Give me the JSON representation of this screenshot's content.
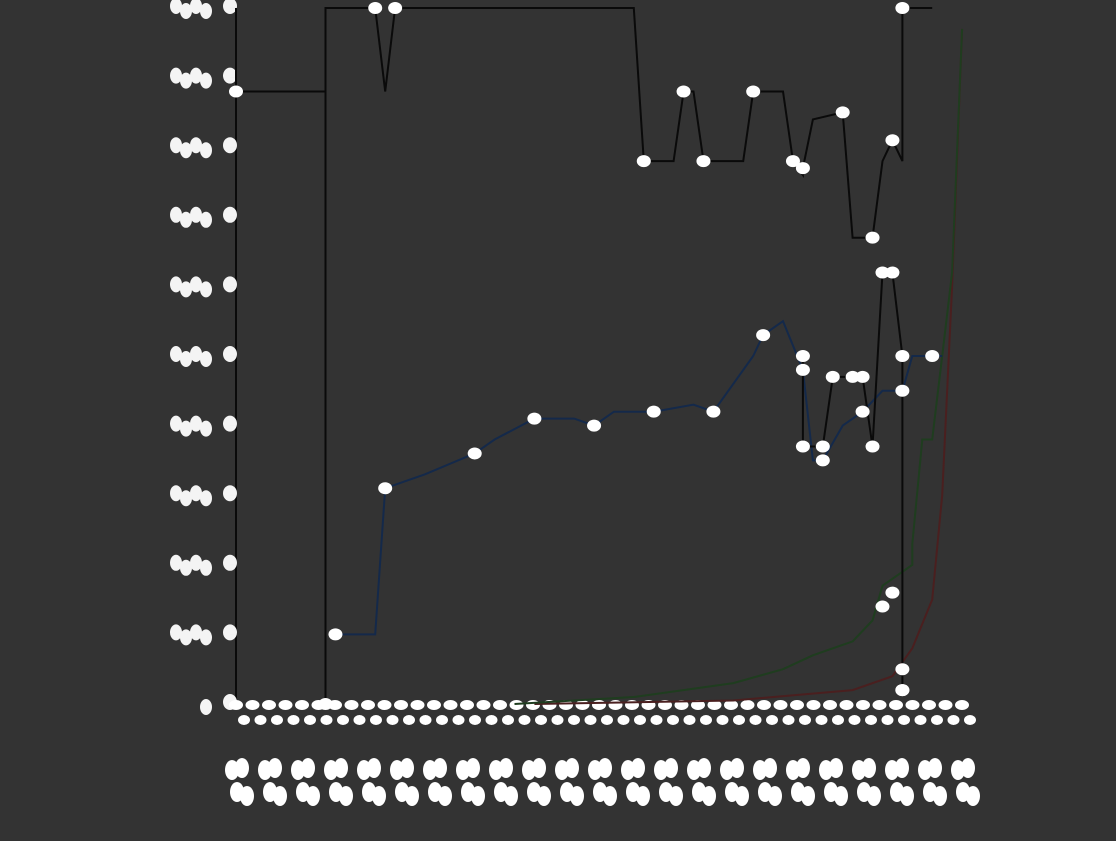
{
  "chart_data": {
    "type": "line",
    "title": "",
    "xlabel": "",
    "ylabel": "",
    "ylim": [
      0,
      10
    ],
    "grid": false,
    "legend": "none",
    "x": [
      0,
      2,
      4,
      6,
      8,
      10,
      12,
      14,
      16,
      18,
      20,
      22,
      24,
      26,
      28,
      30,
      32,
      34,
      36,
      38,
      40,
      42,
      44,
      46,
      48,
      50,
      52,
      54,
      56,
      58,
      60,
      62,
      64,
      66,
      68,
      70,
      72,
      74,
      76,
      78,
      80,
      82,
      84,
      86,
      88,
      90
    ],
    "series": [
      {
        "color": "#0a0a0a",
        "values": [
          9,
          9,
          9,
          9,
          9,
          9,
          9,
          9,
          9,
          0,
          9,
          9,
          9,
          9,
          10,
          10,
          10,
          10,
          10,
          10,
          10,
          10,
          10,
          10,
          10,
          10,
          10,
          10,
          10,
          10,
          10,
          10,
          10,
          10,
          10,
          7.8,
          7.8,
          8.8,
          8.8,
          8.8,
          7.8,
          7.8,
          7.8,
          7.8,
          8.8,
          8.8
        ]
      },
      {
        "color": "#0a0a0a",
        "values": [
          null,
          null,
          null,
          null,
          null,
          null,
          null,
          null,
          null,
          null,
          null,
          null,
          null,
          null,
          null,
          null,
          null,
          null,
          null,
          null,
          null,
          null,
          null,
          null,
          null,
          null,
          null,
          null,
          null,
          null,
          null,
          null,
          null,
          null,
          null,
          null,
          null,
          null,
          null,
          null,
          null,
          null,
          null,
          null,
          null,
          null
        ]
      },
      {
        "color": "#14294a",
        "values": [
          null,
          null,
          null,
          null,
          null,
          null,
          null,
          null,
          null,
          null,
          1,
          1,
          1,
          1,
          1,
          3.2,
          3.2,
          3.2,
          3.2,
          3.2,
          3.2,
          3.6,
          3.6,
          3.6,
          3.8,
          3.8,
          3.8,
          4.1,
          4.1,
          4.1,
          4.1,
          4.1,
          4.1,
          4.1,
          4.1,
          4.1,
          4.1,
          4.1,
          4.1,
          4.1,
          4.1,
          4.1,
          4.1,
          4.1,
          4.1,
          4.1
        ]
      },
      {
        "color": "#1f3d1f",
        "values": [
          0,
          0,
          0,
          0,
          0,
          0,
          0,
          0,
          0,
          0,
          0,
          0,
          0,
          0,
          0,
          0,
          0,
          0,
          0,
          0,
          0,
          0,
          0,
          0,
          0,
          0,
          0,
          0,
          0,
          0,
          0,
          0.1,
          0.1,
          0.1,
          0.1,
          0.1,
          0.1,
          0.2,
          0.2,
          0.2,
          0.2,
          0.2,
          0.2,
          0.3,
          0.3,
          0.3
        ]
      }
    ],
    "blue_line_full": {
      "color": "#14294a",
      "points": [
        [
          10,
          1.0
        ],
        [
          14,
          1.0
        ],
        [
          15,
          3.1
        ],
        [
          19,
          3.3
        ],
        [
          24,
          3.6
        ],
        [
          26,
          3.8
        ],
        [
          30,
          4.1
        ],
        [
          34,
          4.1
        ],
        [
          36,
          4.0
        ],
        [
          38,
          4.2
        ],
        [
          42,
          4.2
        ],
        [
          46,
          4.3
        ],
        [
          48,
          4.2
        ],
        [
          52,
          5.0
        ],
        [
          53,
          5.3
        ],
        [
          55,
          5.5
        ],
        [
          57,
          4.8
        ],
        [
          58,
          3.5
        ],
        [
          59,
          3.5
        ],
        [
          61,
          4.0
        ],
        [
          63,
          4.2
        ],
        [
          65,
          4.5
        ],
        [
          67,
          4.5
        ],
        [
          68,
          5.0
        ],
        [
          70,
          5.0
        ],
        [
          71,
          5.0
        ]
      ]
    },
    "black_line_full": {
      "color": "#0a0a0a",
      "points": [
        [
          0,
          10
        ],
        [
          0,
          8.8
        ],
        [
          9,
          8.8
        ],
        [
          9,
          0
        ],
        [
          9,
          10
        ],
        [
          14,
          10
        ],
        [
          15,
          8.8
        ],
        [
          16,
          10
        ],
        [
          40,
          10
        ],
        [
          41,
          7.8
        ],
        [
          44,
          7.8
        ],
        [
          45,
          8.8
        ],
        [
          46,
          8.8
        ],
        [
          47,
          7.8
        ],
        [
          51,
          7.8
        ],
        [
          52,
          8.8
        ],
        [
          55,
          8.8
        ],
        [
          56,
          7.8
        ],
        [
          57,
          7.6
        ],
        [
          57,
          7.7
        ],
        [
          58,
          8.4
        ],
        [
          61,
          8.5
        ],
        [
          62,
          6.7
        ],
        [
          64,
          6.7
        ],
        [
          65,
          7.8
        ],
        [
          66,
          8.1
        ],
        [
          67,
          7.8
        ],
        [
          67,
          10
        ],
        [
          70,
          10
        ]
      ]
    },
    "black_line2_full": {
      "color": "#0a0a0a",
      "points": [
        [
          57,
          5.0
        ],
        [
          57,
          3.7
        ],
        [
          59,
          3.7
        ],
        [
          60,
          4.7
        ],
        [
          62,
          4.7
        ],
        [
          63,
          4.7
        ],
        [
          64,
          3.7
        ],
        [
          65,
          6.2
        ],
        [
          66,
          6.2
        ],
        [
          67,
          5.0
        ],
        [
          67,
          0.2
        ]
      ]
    },
    "green_line_full": {
      "color": "#1f3d1f",
      "points": [
        [
          28,
          0
        ],
        [
          40,
          0.1
        ],
        [
          50,
          0.3
        ],
        [
          55,
          0.5
        ],
        [
          58,
          0.7
        ],
        [
          60,
          0.8
        ],
        [
          62,
          0.9
        ],
        [
          64,
          1.2
        ],
        [
          65,
          1.7
        ],
        [
          67,
          1.9
        ],
        [
          68,
          2.0
        ],
        [
          68,
          2.3
        ],
        [
          69,
          3.8
        ],
        [
          70,
          3.8
        ],
        [
          71,
          5.0
        ],
        [
          72,
          6.2
        ],
        [
          73,
          9.7
        ]
      ]
    },
    "red_line_full": {
      "color": "#4a1f1f",
      "points": [
        [
          30,
          0
        ],
        [
          50,
          0.05
        ],
        [
          62,
          0.2
        ],
        [
          66,
          0.4
        ],
        [
          68,
          0.8
        ],
        [
          70,
          1.5
        ],
        [
          71,
          3.0
        ],
        [
          72,
          6.0
        ],
        [
          73,
          9.7
        ]
      ]
    }
  }
}
